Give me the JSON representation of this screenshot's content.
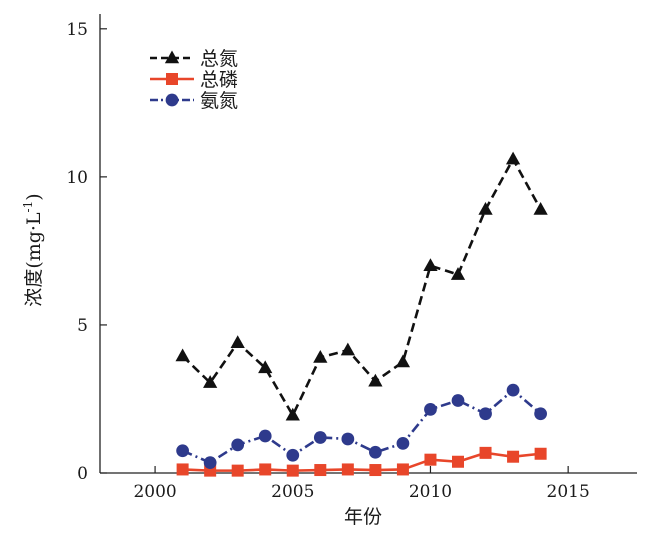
{
  "chart_data": {
    "type": "line",
    "title": "",
    "xlabel": "年份",
    "ylabel_main": "浓度(mg·L",
    "ylabel_sup": "-1",
    "ylabel_close": ")",
    "xlim": [
      1998,
      2017.5
    ],
    "ylim": [
      0,
      15.5
    ],
    "xticks": [
      2000,
      2005,
      2010,
      2015
    ],
    "yticks": [
      0,
      5,
      10,
      15
    ],
    "grid": false,
    "legend_position": "top-left",
    "series": [
      {
        "name": "总氮",
        "color": "#111111",
        "marker": "triangle",
        "line_style": "dashed",
        "x": [
          2001,
          2002,
          2003,
          2004,
          2005,
          2006,
          2007,
          2008,
          2009,
          2010,
          2011,
          2012,
          2013,
          2014
        ],
        "values": [
          3.95,
          3.05,
          4.4,
          3.55,
          1.95,
          3.9,
          4.15,
          3.1,
          3.75,
          7.0,
          6.7,
          8.9,
          10.6,
          8.9
        ]
      },
      {
        "name": "总磷",
        "color": "#e8462a",
        "marker": "square",
        "line_style": "solid",
        "x": [
          2001,
          2002,
          2003,
          2004,
          2005,
          2006,
          2007,
          2008,
          2009,
          2010,
          2011,
          2012,
          2013,
          2014
        ],
        "values": [
          0.12,
          0.08,
          0.08,
          0.12,
          0.08,
          0.1,
          0.12,
          0.1,
          0.12,
          0.45,
          0.38,
          0.68,
          0.55,
          0.65
        ]
      },
      {
        "name": "氨氮",
        "color": "#2e3a8c",
        "marker": "circle",
        "line_style": "dash-dot",
        "x": [
          2001,
          2002,
          2003,
          2004,
          2005,
          2006,
          2007,
          2008,
          2009,
          2010,
          2011,
          2012,
          2013,
          2014
        ],
        "values": [
          0.75,
          0.35,
          0.95,
          1.25,
          0.6,
          1.2,
          1.15,
          0.7,
          1.0,
          2.15,
          2.45,
          2.0,
          2.8,
          2.0
        ]
      }
    ]
  }
}
